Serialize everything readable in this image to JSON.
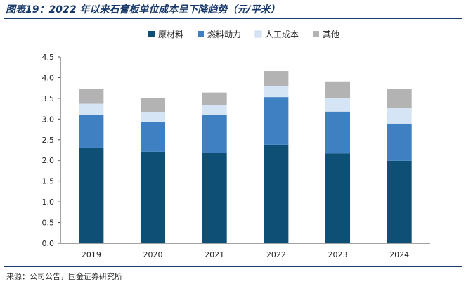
{
  "title": "图表19：2022 年以来石膏板单位成本呈下降趋势（元/平米）",
  "source": "来源：公司公告，国金证券研究所",
  "chart_data": {
    "type": "bar",
    "stacked": true,
    "categories": [
      "2019",
      "2020",
      "2021",
      "2022",
      "2023",
      "2024"
    ],
    "series": [
      {
        "name": "原材料",
        "color": "#0d4f75",
        "values": [
          2.31,
          2.21,
          2.19,
          2.38,
          2.17,
          1.99
        ]
      },
      {
        "name": "燃料动力",
        "color": "#3f80c2",
        "values": [
          0.79,
          0.72,
          0.91,
          1.15,
          1.01,
          0.9
        ]
      },
      {
        "name": "人工成本",
        "color": "#d6e5f5",
        "values": [
          0.27,
          0.23,
          0.23,
          0.26,
          0.32,
          0.37
        ]
      },
      {
        "name": "其他",
        "color": "#b3b3b3",
        "values": [
          0.35,
          0.34,
          0.31,
          0.37,
          0.41,
          0.46
        ]
      }
    ],
    "ylim": [
      0,
      4.5
    ],
    "yticks": [
      "0.0",
      "0.5",
      "1.0",
      "1.5",
      "2.0",
      "2.5",
      "3.0",
      "3.5",
      "4.0",
      "4.5"
    ],
    "grid": false,
    "legend": "top-center"
  }
}
